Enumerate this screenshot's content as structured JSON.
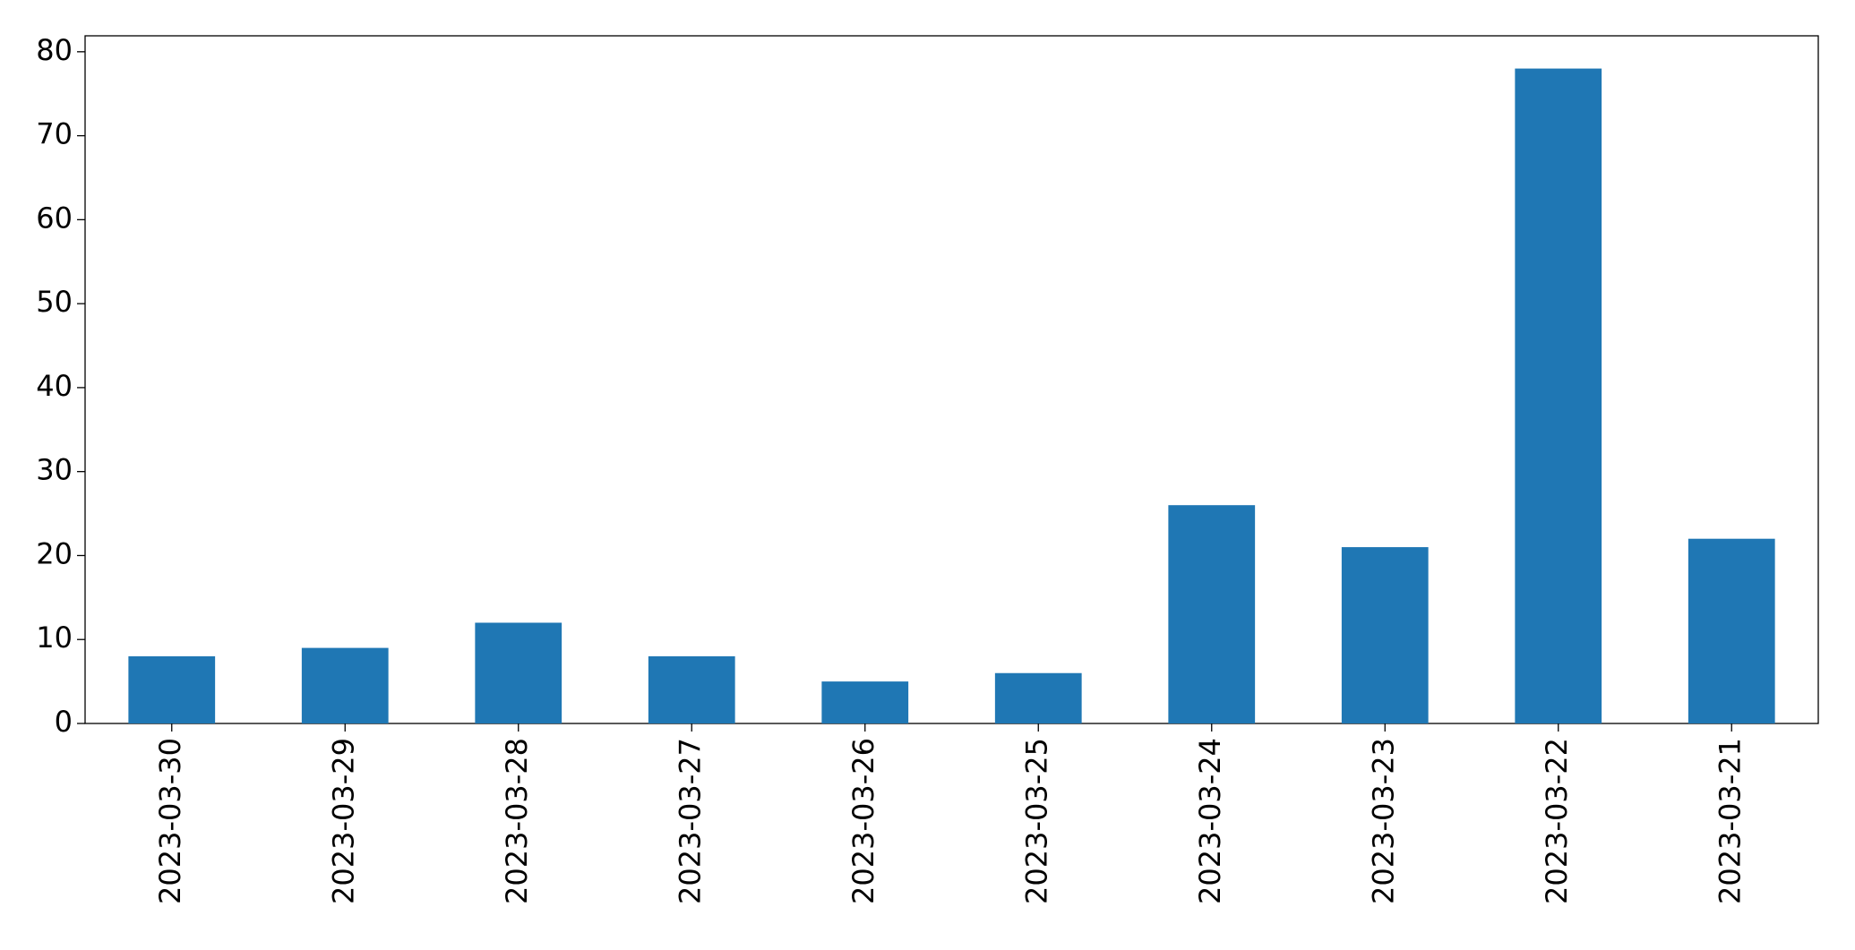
{
  "chart_data": {
    "type": "bar",
    "categories": [
      "2023-03-30",
      "2023-03-29",
      "2023-03-28",
      "2023-03-27",
      "2023-03-26",
      "2023-03-25",
      "2023-03-24",
      "2023-03-23",
      "2023-03-22",
      "2023-03-21"
    ],
    "values": [
      8,
      9,
      12,
      8,
      5,
      6,
      26,
      21,
      78,
      22
    ],
    "color": "#1f77b4",
    "ylim": [
      0,
      81.9
    ],
    "yticks": [
      0,
      10,
      20,
      30,
      40,
      50,
      60,
      70,
      80
    ],
    "grid": false
  }
}
